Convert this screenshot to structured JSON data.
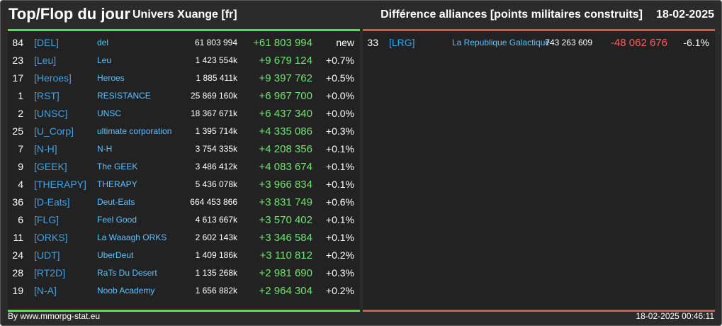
{
  "header": {
    "title": "Top/Flop du jour",
    "universe": "Univers Xuange [fr]",
    "metric": "Différence alliances [points militaires construits]",
    "date": "18-02-2025"
  },
  "colors": {
    "top_accent": "#4de44d",
    "flop_accent": "#e05050",
    "tag": "#3ea3e8",
    "name": "#5fc0ff",
    "positive": "#6ee36e",
    "negative": "#ff5a5a"
  },
  "top": [
    {
      "rank": "84",
      "tag": "[DEL]",
      "name": "del",
      "points": "61 803 994",
      "diff": "+61 803 994",
      "pct": "new"
    },
    {
      "rank": "23",
      "tag": "[Leu]",
      "name": "Leu",
      "points": "1 423 554k",
      "diff": "+9 679 124",
      "pct": "+0.7%"
    },
    {
      "rank": "17",
      "tag": "[Heroes]",
      "name": "Heroes",
      "points": "1 885 411k",
      "diff": "+9 397 762",
      "pct": "+0.5%"
    },
    {
      "rank": "1",
      "tag": "[RST]",
      "name": "RESISTANCE",
      "points": "25 869 160k",
      "diff": "+6 967 700",
      "pct": "+0.0%"
    },
    {
      "rank": "2",
      "tag": "[UNSC]",
      "name": "UNSC",
      "points": "18 367 671k",
      "diff": "+6 437 340",
      "pct": "+0.0%"
    },
    {
      "rank": "25",
      "tag": "[U_Corp]",
      "name": "ultimate corporation",
      "points": "1 395 714k",
      "diff": "+4 335 086",
      "pct": "+0.3%"
    },
    {
      "rank": "7",
      "tag": "[N-H]",
      "name": "N-H",
      "points": "3 754 335k",
      "diff": "+4 208 356",
      "pct": "+0.1%"
    },
    {
      "rank": "9",
      "tag": "[GEEK]",
      "name": "The GEEK",
      "points": "3 486 412k",
      "diff": "+4 083 674",
      "pct": "+0.1%"
    },
    {
      "rank": "4",
      "tag": "[THERAPY]",
      "name": "THERAPY",
      "points": "5 436 078k",
      "diff": "+3 966 834",
      "pct": "+0.1%"
    },
    {
      "rank": "36",
      "tag": "[D-Eats]",
      "name": "Deut-Eats",
      "points": "664 453 866",
      "diff": "+3 831 749",
      "pct": "+0.6%"
    },
    {
      "rank": "6",
      "tag": "[FLG]",
      "name": "Feel Good",
      "points": "4 613 667k",
      "diff": "+3 570 402",
      "pct": "+0.1%"
    },
    {
      "rank": "11",
      "tag": "[ORKS]",
      "name": "La Waaagh ORKS",
      "points": "2 602 143k",
      "diff": "+3 346 584",
      "pct": "+0.1%"
    },
    {
      "rank": "24",
      "tag": "[UDT]",
      "name": "UberDeut",
      "points": "1 409 186k",
      "diff": "+3 110 812",
      "pct": "+0.2%"
    },
    {
      "rank": "28",
      "tag": "[RT2D]",
      "name": "RaTs Du Desert",
      "points": "1 135 268k",
      "diff": "+2 981 690",
      "pct": "+0.3%"
    },
    {
      "rank": "19",
      "tag": "[N-A]",
      "name": "Noob Academy",
      "points": "1 656 882k",
      "diff": "+2 964 304",
      "pct": "+0.2%"
    }
  ],
  "flop": [
    {
      "rank": "33",
      "tag": "[LRG]",
      "name": "La Republique Galactique",
      "points": "743 263 609",
      "diff": "-48 062 676",
      "pct": "-6.1%"
    }
  ],
  "footer": {
    "source": "By www.mmorpg-stat.eu",
    "timestamp": "18-02-2025 00:46:11"
  }
}
